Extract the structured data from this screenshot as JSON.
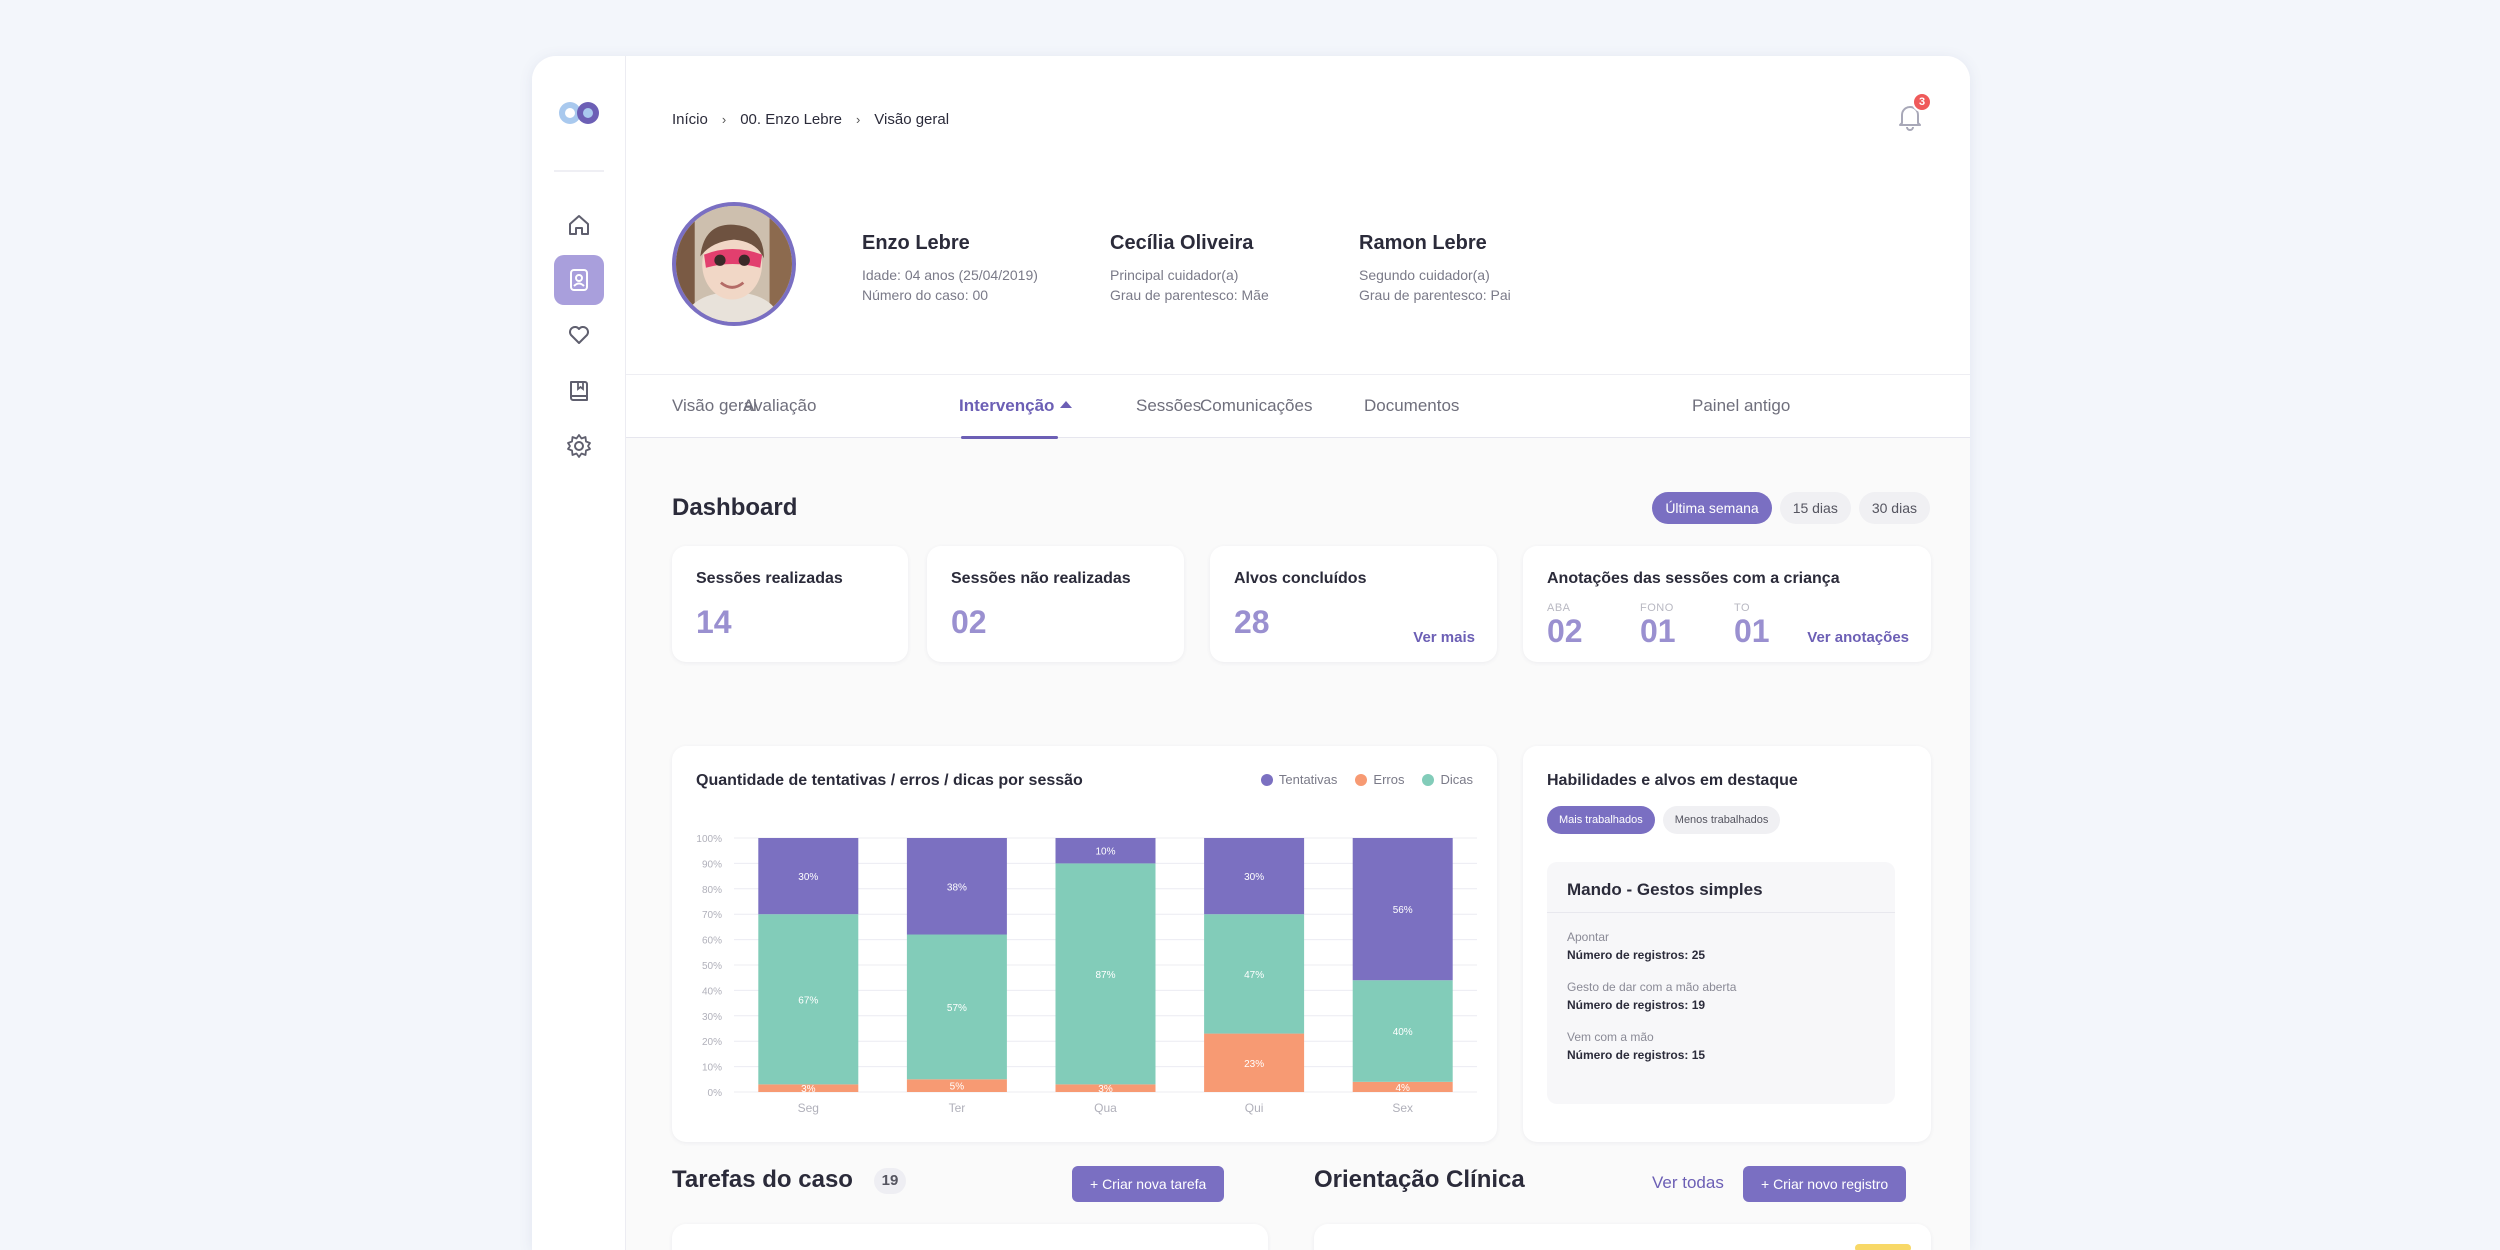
{
  "breadcrumb": [
    "Início",
    "00. Enzo Lebre",
    "Visão geral"
  ],
  "notifications": {
    "count": "3"
  },
  "patient": {
    "name": "Enzo Lebre",
    "age": "Idade: 04 anos (25/04/2019)",
    "case_number": "Número do caso: 00"
  },
  "caregivers": [
    {
      "name": "Cecília Oliveira",
      "role": "Principal cuidador(a)",
      "kinship": "Grau de parentesco: Mãe"
    },
    {
      "name": "Ramon Lebre",
      "role": "Segundo cuidador(a)",
      "kinship": "Grau de parentesco: Pai"
    }
  ],
  "tabs": [
    "Visão geral",
    "Avaliação",
    "Intervenção",
    "Sessões",
    "Comunicações",
    "Documentos",
    "Painel antigo"
  ],
  "dashboard": {
    "title": "Dashboard",
    "filters": [
      "Última semana",
      "15 dias",
      "30 dias"
    ],
    "stats": [
      {
        "label": "Sessões realizadas",
        "value": "14"
      },
      {
        "label": "Sessões não realizadas",
        "value": "02"
      },
      {
        "label": "Alvos concluídos",
        "value": "28",
        "link": "Ver mais"
      }
    ],
    "notes": {
      "title": "Anotações das sessões com a criança",
      "items": [
        {
          "label": "ABA",
          "value": "02"
        },
        {
          "label": "FONO",
          "value": "01"
        },
        {
          "label": "TO",
          "value": "01"
        }
      ],
      "link": "Ver anotações"
    }
  },
  "chart_card": {
    "title": "Quantidade de tentativas / erros / dicas por sessão",
    "legend": [
      "Tentativas",
      "Erros",
      "Dicas"
    ]
  },
  "chart_data": {
    "type": "bar",
    "stacked": true,
    "categories": [
      "Seg",
      "Ter",
      "Qua",
      "Qui",
      "Sex"
    ],
    "series": [
      {
        "name": "Erros",
        "values": [
          3,
          5,
          3,
          23,
          4
        ],
        "color": "#f79a73"
      },
      {
        "name": "Dicas",
        "values": [
          67,
          57,
          87,
          47,
          40
        ],
        "color": "#82ccb9"
      },
      {
        "name": "Tentativas",
        "values": [
          30,
          38,
          10,
          30,
          56
        ],
        "color": "#7b70c1"
      }
    ],
    "yticks": [
      "0%",
      "10%",
      "20%",
      "30%",
      "40%",
      "50%",
      "60%",
      "70%",
      "80%",
      "90%",
      "100%"
    ],
    "ylim": [
      0,
      100
    ],
    "grid": true,
    "legend_position": "top-right"
  },
  "highlights": {
    "title": "Habilidades e alvos em destaque",
    "pills": [
      "Mais trabalhados",
      "Menos trabalhados"
    ],
    "skill": {
      "title": "Mando - Gestos simples",
      "items": [
        {
          "name": "Apontar",
          "count": "Número de registros: 25"
        },
        {
          "name": "Gesto de dar com a mão aberta",
          "count": "Número de registros: 19"
        },
        {
          "name": "Vem com a mão",
          "count": "Número de registros: 15"
        }
      ]
    }
  },
  "tasks": {
    "title": "Tarefas do caso",
    "count": "19",
    "button": "+ Criar nova tarefa"
  },
  "orientation": {
    "title": "Orientação Clínica",
    "link": "Ver todas",
    "button": "+ Criar novo registro"
  },
  "colors": {
    "accent": "#7a6fc2",
    "tentativas": "#7b70c1",
    "erros": "#f79a73",
    "dicas": "#82ccb9",
    "badge": "#ef5a5a"
  }
}
